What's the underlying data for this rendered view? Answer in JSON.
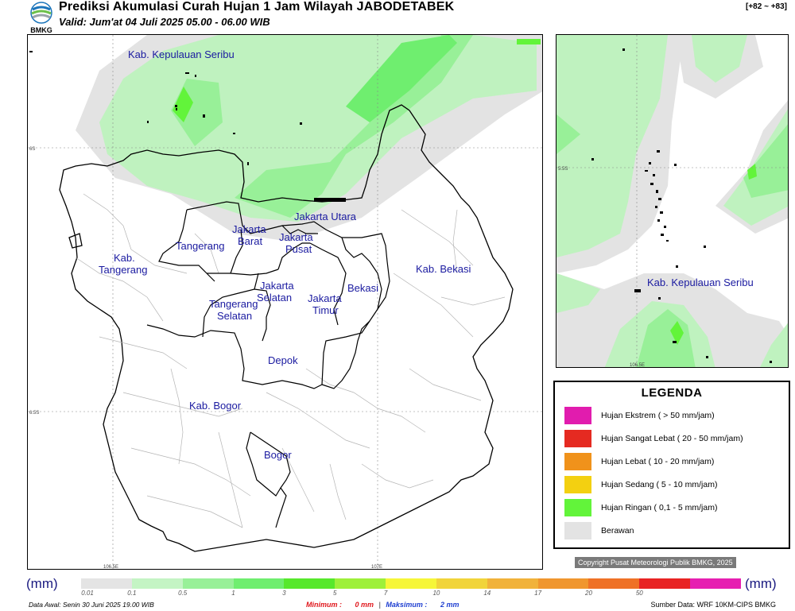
{
  "header": {
    "logo_text": "BMKG",
    "title": "Prediksi Akumulasi Curah Hujan 1 Jam Wilayah JABODETABEK",
    "subtitle": "Valid: Jum'at 04 Juli 2025 05.00 - 06.00 WIB",
    "range_code": "[+82 ~ +83]"
  },
  "map": {
    "regions": [
      "Kab. Kepulauan Seribu",
      "Jakarta Utara",
      "Jakarta Barat",
      "Jakarta Pusat",
      "Tangerang",
      "Kab. Tangerang",
      "Jakarta Selatan",
      "Jakarta Timur",
      "Bekasi",
      "Kab. Bekasi",
      "Tangerang Selatan",
      "Depok",
      "Kab. Bogor",
      "Bogor"
    ],
    "coord_labels": {
      "lat_6s": "6S",
      "lat_6_5s": "6.5S",
      "lon_106_5e": "106.5E",
      "lon_107e": "107E"
    }
  },
  "inset": {
    "region": "Kab. Kepulauan Seribu",
    "lat_label": "5.5S",
    "lon_label": "106.5E"
  },
  "legend": {
    "title": "LEGENDA",
    "items": [
      {
        "label": "Hujan Ekstrem  ( > 50 mm/jam)",
        "color": "#e11cae"
      },
      {
        "label": "Hujan Sangat Lebat  ( 20 - 50 mm/jam)",
        "color": "#e52a21"
      },
      {
        "label": "Hujan Lebat  ( 10 - 20 mm/jam)",
        "color": "#f0921b"
      },
      {
        "label": "Hujan Sedang  ( 5 - 10 mm/jam)",
        "color": "#f3d011"
      },
      {
        "label": "Hujan Ringan  ( 0,1 - 5 mm/jam)",
        "color": "#62f43a"
      },
      {
        "label": "Berawan",
        "color": "#e3e3e3"
      }
    ]
  },
  "copyright": "Copyright Pusat Meteorologi Publik BMKG, 2025",
  "scale": {
    "unit_left": "(mm)",
    "unit_right": "(mm)",
    "ticks": [
      "0.01",
      "0.1",
      "0.5",
      "1",
      "3",
      "5",
      "7",
      "10",
      "14",
      "17",
      "20",
      "50"
    ],
    "colors": [
      "#e4e4e4",
      "#c4f4c4",
      "#98f098",
      "#6fee6f",
      "#57e82c",
      "#9ef03a",
      "#f6f638",
      "#f1d43a",
      "#f1b23a",
      "#f0962e",
      "#ef7126",
      "#e82323",
      "#e61fb1"
    ]
  },
  "footer": {
    "data_awal": "Data Awal: Senin 30 Juni 2025 19.00 WIB",
    "minimum_label": "Minimum :",
    "minimum_value": "0 mm",
    "maximum_label": "Maksimum :",
    "maximum_value": "2 mm",
    "source": "Sumber Data: WRF 10KM-CIPS BMKG"
  }
}
